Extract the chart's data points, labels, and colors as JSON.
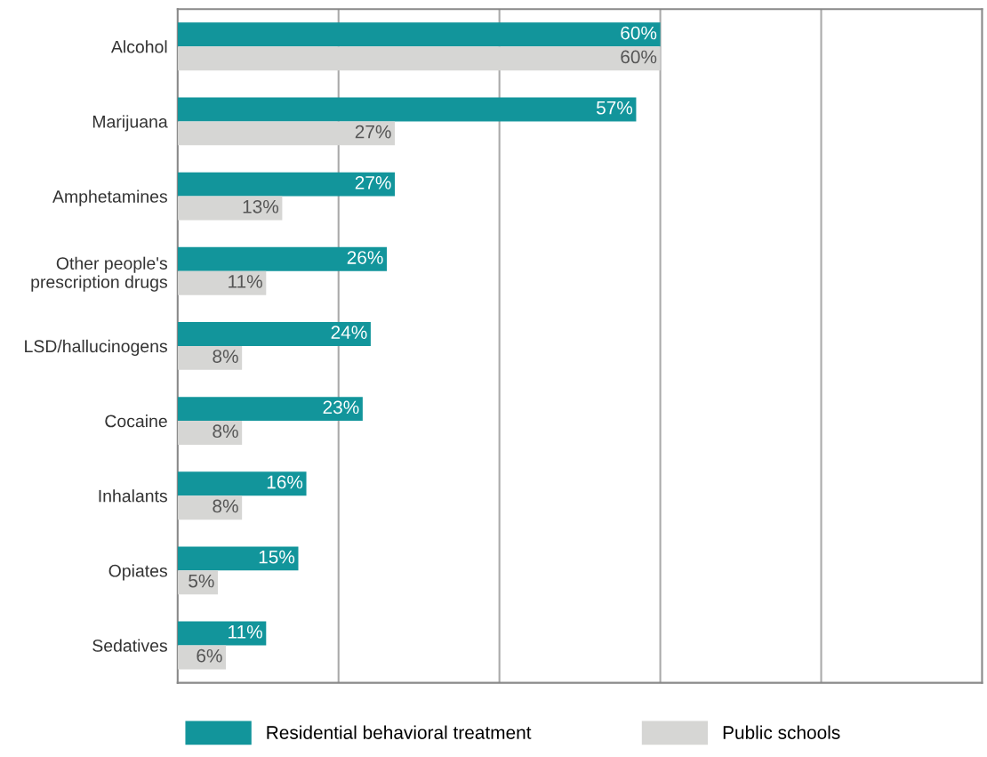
{
  "chart_data": {
    "type": "bar",
    "orientation": "horizontal",
    "categories": [
      "Alcohol",
      "Marijuana",
      "Amphetamines",
      "Other people's\nprescription drugs",
      "LSD/hallucinogens",
      "Cocaine",
      "Inhalants",
      "Opiates",
      "Sedatives"
    ],
    "series": [
      {
        "name": "Residential behavioral treatment",
        "color": "#12959b",
        "values": [
          60,
          57,
          27,
          26,
          24,
          23,
          16,
          15,
          11
        ],
        "value_labels": [
          "60%",
          "57%",
          "27%",
          "26%",
          "24%",
          "23%",
          "16%",
          "15%",
          "11%"
        ]
      },
      {
        "name": "Public schools",
        "color": "#d6d6d4",
        "values": [
          60,
          27,
          13,
          11,
          8,
          8,
          8,
          5,
          6
        ],
        "value_labels": [
          "60%",
          "27%",
          "13%",
          "11%",
          "8%",
          "8%",
          "8%",
          "5%",
          "6%"
        ]
      }
    ],
    "xlim": [
      0,
      100
    ],
    "xticks": [
      {
        "value": 20,
        "label": null
      },
      {
        "value": 40,
        "label": null
      },
      {
        "value": 60,
        "label": null
      },
      {
        "value": 80,
        "label": null
      }
    ],
    "tick_labels": "y",
    "grid": "x",
    "legend": "bottom"
  }
}
